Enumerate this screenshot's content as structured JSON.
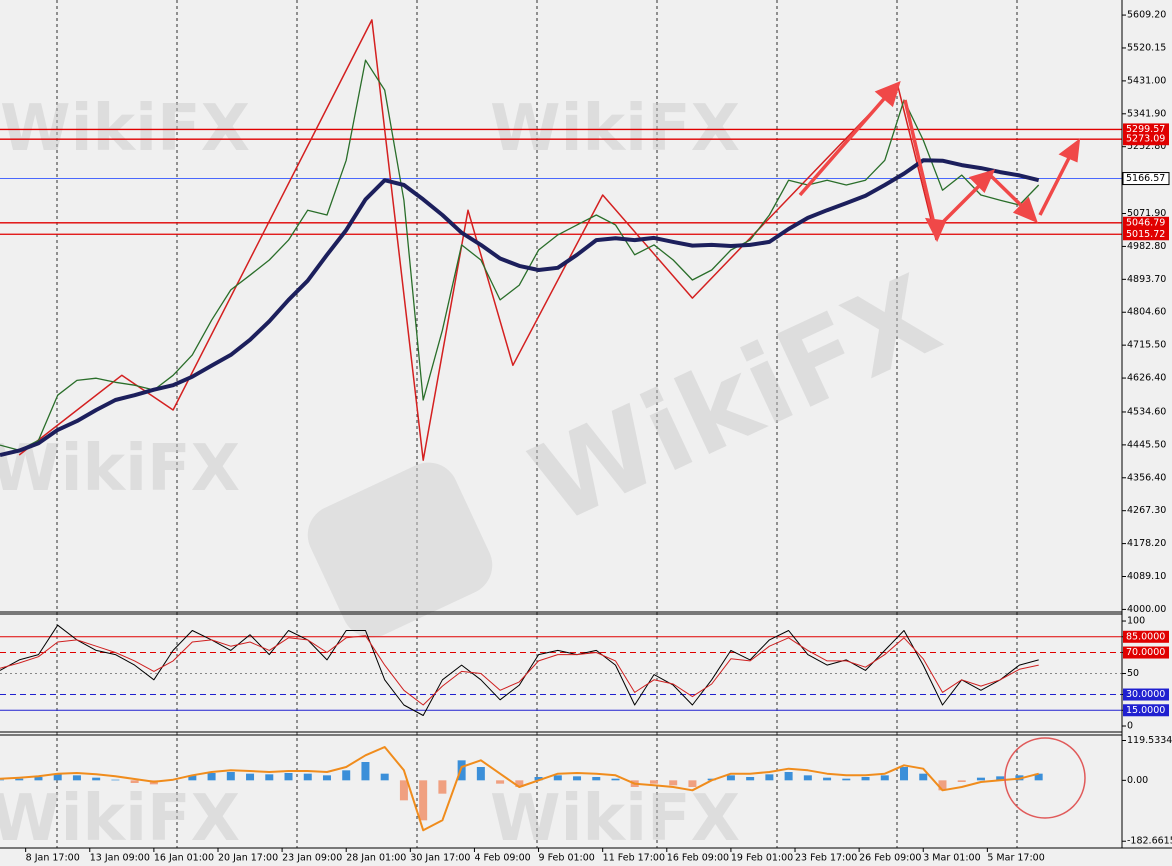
{
  "chart_data": [
    {
      "type": "line",
      "watermark": "WikiFX",
      "xlim": [
        0,
        175
      ],
      "ylim": [
        3993,
        5650
      ],
      "yticks": [
        {
          "value": 5609.2,
          "label": "5609.20"
        },
        5520.15,
        {
          "value": 5431,
          "label": "5431.00"
        },
        {
          "value": 5341.9,
          "label": "5341.90"
        },
        {
          "value": 5252.8,
          "label": "5252.80"
        },
        {
          "value": 5071.9,
          "label": "5071.90"
        },
        {
          "value": 4982.8,
          "label": "4982.80"
        },
        {
          "value": 4893.7,
          "label": "4893.70"
        },
        {
          "value": 4804.6,
          "label": "4804.60"
        },
        {
          "value": 4715.5,
          "label": "4715.50"
        },
        {
          "value": 4626.4,
          "label": "4626.40"
        },
        {
          "value": 4534.6,
          "label": "4534.60"
        },
        {
          "value": 4445.5,
          "label": "4445.50"
        },
        {
          "value": 4356.4,
          "label": "4356.40"
        },
        {
          "value": 4267.3,
          "label": "4267.30"
        },
        {
          "value": 4178.2,
          "label": "4178.20"
        },
        {
          "value": 4089.1,
          "label": "4089.10"
        },
        {
          "value": 4000,
          "label": "4000.00"
        }
      ],
      "x": [
        0,
        3,
        6,
        9,
        12,
        15,
        18,
        21,
        24,
        27,
        30,
        33,
        36,
        39,
        42,
        45,
        48,
        51,
        54,
        57,
        60,
        63,
        66,
        69,
        72,
        75,
        78,
        81,
        84,
        87,
        90,
        93,
        96,
        99,
        102,
        105,
        108,
        111,
        114,
        117,
        120,
        123,
        126,
        129,
        132,
        135,
        138,
        141,
        144,
        147,
        150,
        153,
        156,
        159,
        162
      ],
      "series": [
        {
          "color": "#2a6e2a",
          "values": [
            4445,
            4431,
            4458,
            4580,
            4620,
            4626,
            4615,
            4607,
            4594,
            4634,
            4689,
            4783,
            4865,
            4905,
            4946,
            5000,
            5081,
            5068,
            5216,
            5487,
            5406,
            5108,
            4567,
            4756,
            4987,
            4946,
            4838,
            4878,
            4973,
            5014,
            5041,
            5068,
            5041,
            4960,
            4987,
            4946,
            4892,
            4919,
            4973,
            5000,
            5068,
            5162,
            5149,
            5162,
            5149,
            5162,
            5216,
            5379,
            5271,
            5135,
            5176,
            5122,
            5108,
            5095,
            5149
          ]
        },
        {
          "color": "#1c1f5c",
          "values": [
            4418,
            4430,
            4450,
            4486,
            4510,
            4540,
            4567,
            4580,
            4595,
            4607,
            4630,
            4660,
            4689,
            4730,
            4780,
            4838,
            4890,
            4960,
            5027,
            5110,
            5162,
            5149,
            5110,
            5068,
            5020,
            4987,
            4950,
            4930,
            4919,
            4925,
            4960,
            5000,
            5005,
            5000,
            5006,
            4995,
            4985,
            4987,
            4984,
            4987,
            4995,
            5030,
            5060,
            5081,
            5100,
            5120,
            5149,
            5180,
            5216,
            5215,
            5203,
            5195,
            5184,
            5175,
            5162
          ]
        }
      ],
      "zigzag": {
        "color": "#d42020",
        "x": [
          3,
          19,
          27,
          58,
          66,
          73,
          80,
          94,
          108,
          140,
          146
        ],
        "values": [
          4418,
          4634,
          4540,
          5596,
          4404,
          5081,
          4661,
          5122,
          4843,
          5420,
          5000
        ]
      },
      "levels": [
        5299.57,
        5273.09,
        5046.79,
        5015.72
      ],
      "level_color": "#e00000",
      "current_price": 5166.57,
      "current_color": "#3355ff"
    },
    {
      "type": "line",
      "xlim": [
        0,
        175
      ],
      "ylim": [
        -5.7,
        106.7
      ],
      "yticks": [
        100,
        {
          "value": 85,
          "label": "85.0000"
        },
        {
          "value": 70,
          "label": "70.0000"
        },
        50,
        {
          "value": 30,
          "label": "30.0000"
        },
        {
          "value": 15,
          "label": "15.0000"
        },
        0
      ],
      "x": [
        0,
        3,
        6,
        9,
        12,
        15,
        18,
        21,
        24,
        27,
        30,
        33,
        36,
        39,
        42,
        45,
        48,
        51,
        54,
        57,
        60,
        63,
        66,
        69,
        72,
        75,
        78,
        81,
        84,
        87,
        90,
        93,
        96,
        99,
        102,
        105,
        108,
        111,
        114,
        117,
        120,
        123,
        126,
        129,
        132,
        135,
        138,
        141,
        144,
        147,
        150,
        153,
        156,
        159,
        162
      ],
      "series": [
        {
          "color": "#000000",
          "values": [
            53,
            63,
            68,
            96,
            82,
            72,
            68,
            58,
            44,
            72,
            91,
            82,
            72,
            87,
            68,
            91,
            82,
            63,
            91,
            91,
            44,
            20,
            10,
            44,
            58,
            44,
            25,
            39,
            68,
            72,
            68,
            72,
            58,
            20,
            49,
            39,
            20,
            44,
            72,
            63,
            82,
            91,
            68,
            58,
            63,
            53,
            72,
            91,
            58,
            20,
            44,
            34,
            44,
            58,
            63
          ]
        },
        {
          "color": "#d02020",
          "values": [
            55,
            60,
            66,
            80,
            82,
            76,
            70,
            62,
            52,
            62,
            80,
            82,
            76,
            80,
            72,
            84,
            82,
            70,
            84,
            86,
            58,
            34,
            20,
            38,
            52,
            50,
            34,
            42,
            62,
            68,
            68,
            70,
            62,
            32,
            44,
            40,
            28,
            40,
            64,
            62,
            76,
            84,
            72,
            62,
            62,
            56,
            68,
            84,
            64,
            32,
            44,
            38,
            44,
            54,
            58
          ]
        }
      ]
    },
    {
      "type": "bar",
      "xlim": [
        0,
        175
      ],
      "ylim": [
        -203,
        136
      ],
      "yticks": [
        119.5334,
        {
          "value": 0,
          "label": "0.00"
        },
        -182.6615
      ],
      "xticks": [
        {
          "value": 4,
          "label": "8 Jan 17:00"
        },
        {
          "value": 14,
          "label": "13 Jan 09:00"
        },
        {
          "value": 24,
          "label": "16 Jan 01:00"
        },
        {
          "value": 34,
          "label": "20 Jan 17:00"
        },
        {
          "value": 44,
          "label": "23 Jan 09:00"
        },
        {
          "value": 54,
          "label": "28 Jan 01:00"
        },
        {
          "value": 64,
          "label": "30 Jan 17:00"
        },
        {
          "value": 74,
          "label": "4 Feb 09:00"
        },
        {
          "value": 84,
          "label": "9 Feb 01:00"
        },
        {
          "value": 94,
          "label": "11 Feb 17:00"
        },
        {
          "value": 104,
          "label": "16 Feb 09:00"
        },
        {
          "value": 114,
          "label": "19 Feb 01:00"
        },
        {
          "value": 124,
          "label": "23 Feb 17:00"
        },
        {
          "value": 134,
          "label": "26 Feb 09:00"
        },
        {
          "value": 144,
          "label": "3 Mar 01:00"
        },
        {
          "value": 154,
          "label": "5 Mar 17:00"
        }
      ],
      "x": [
        0,
        3,
        6,
        9,
        12,
        15,
        18,
        21,
        24,
        27,
        30,
        33,
        36,
        39,
        42,
        45,
        48,
        51,
        54,
        57,
        60,
        63,
        66,
        69,
        72,
        75,
        78,
        81,
        84,
        87,
        90,
        93,
        96,
        99,
        102,
        105,
        108,
        111,
        114,
        117,
        120,
        123,
        126,
        129,
        132,
        135,
        138,
        141,
        144,
        147,
        150,
        153,
        156,
        159,
        162
      ],
      "values": [
        2,
        5,
        10,
        18,
        15,
        8,
        2,
        -8,
        -12,
        0,
        15,
        22,
        25,
        20,
        18,
        22,
        20,
        15,
        30,
        55,
        20,
        -60,
        -120,
        -40,
        60,
        40,
        -10,
        -20,
        10,
        15,
        12,
        10,
        5,
        -20,
        -10,
        -15,
        -20,
        5,
        15,
        10,
        18,
        25,
        15,
        8,
        5,
        10,
        15,
        40,
        20,
        -30,
        -5,
        8,
        12,
        15,
        20
      ],
      "positive_color": "#3b8fd9",
      "negative_color": "#f0a080",
      "signal": {
        "color": "#f08c1c",
        "values": [
          5,
          8,
          12,
          20,
          22,
          18,
          12,
          4,
          -4,
          2,
          15,
          25,
          30,
          28,
          25,
          28,
          28,
          25,
          40,
          75,
          100,
          30,
          -150,
          -120,
          40,
          60,
          20,
          -20,
          0,
          20,
          22,
          20,
          15,
          -10,
          -15,
          -20,
          -30,
          0,
          20,
          20,
          25,
          35,
          30,
          20,
          15,
          15,
          20,
          45,
          35,
          -30,
          -20,
          -5,
          0,
          5,
          20
        ]
      }
    }
  ]
}
